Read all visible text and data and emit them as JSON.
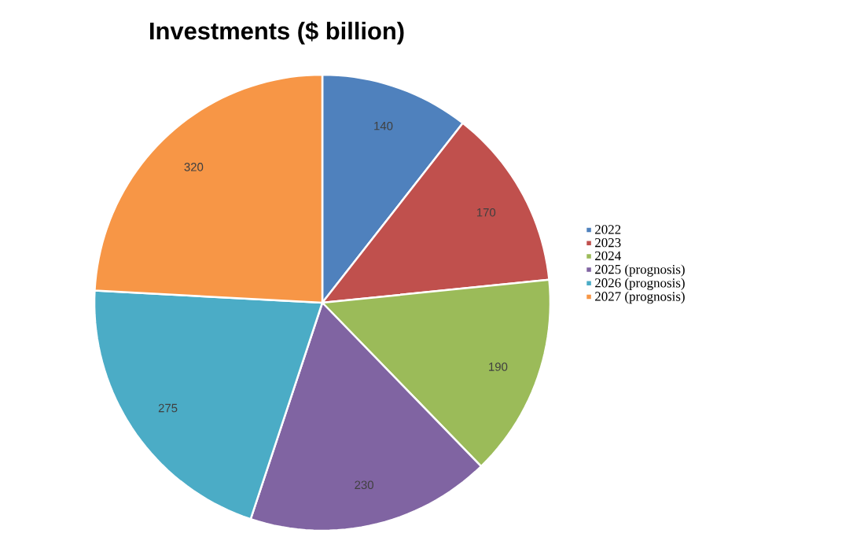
{
  "chart_data": {
    "type": "pie",
    "title": "Investments ($ billion)",
    "categories": [
      "2022",
      "2023",
      "2024",
      "2025 (prognosis)",
      "2026 (prognosis)",
      "2027 (prognosis)"
    ],
    "values": [
      140,
      170,
      190,
      230,
      275,
      320
    ],
    "colors": [
      "#4f81bd",
      "#c0504d",
      "#9bbb59",
      "#8064a2",
      "#4bacc6",
      "#f79646"
    ],
    "data_labels": true,
    "legend": "right"
  }
}
